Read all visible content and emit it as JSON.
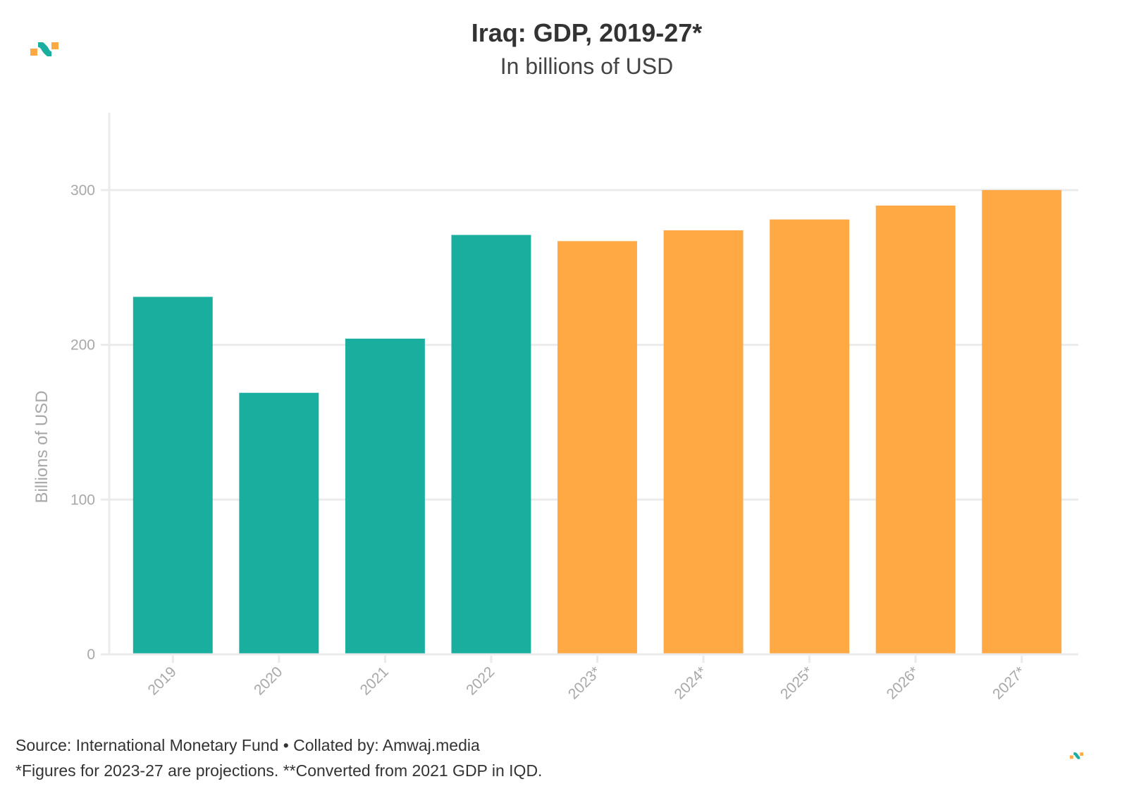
{
  "header": {
    "title": "Iraq: GDP, 2019-27*",
    "subtitle": "In billions of USD"
  },
  "brand": {
    "logo_icon": "amwaj-logo-icon",
    "teal": "#1aae9f",
    "orange": "#ffa944"
  },
  "footer": {
    "source": "Source: International Monetary Fund • Collated by: Amwaj.media",
    "note": "*Figures for 2023-27 are projections. **Converted from 2021 GDP in IQD."
  },
  "chart_data": {
    "type": "bar",
    "title": "Iraq: GDP, 2019-27*",
    "subtitle": "In billions of USD",
    "xlabel": "",
    "ylabel": "Billions of USD",
    "categories": [
      "2019",
      "2020",
      "2021",
      "2022",
      "2023*",
      "2024*",
      "2025*",
      "2026*",
      "2027*"
    ],
    "values": [
      231,
      169,
      204,
      271,
      267,
      274,
      281,
      290,
      300
    ],
    "series_type": [
      "actual",
      "actual",
      "actual",
      "actual",
      "projection",
      "projection",
      "projection",
      "projection",
      "projection"
    ],
    "colors": {
      "actual": "#1aae9f",
      "projection": "#ffa944"
    },
    "ylim": [
      0,
      350
    ],
    "yticks": [
      0,
      100,
      200,
      300
    ],
    "grid": true,
    "legend": "none"
  }
}
